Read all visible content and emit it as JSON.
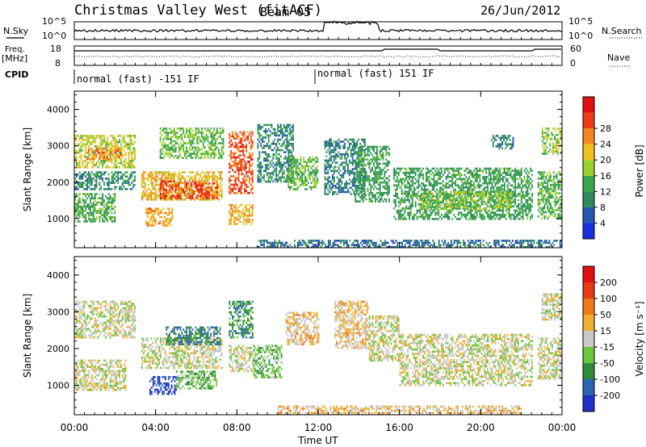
{
  "header": {
    "title": "Christmas Valley West (fitACF)",
    "beam": "Beam 05",
    "date": "26/Jun/2012"
  },
  "labels": {
    "nsky": "N.Sky",
    "nsearch": "N.Search",
    "freq_top": "Freq.",
    "freq_unit": "[MHz]",
    "nave": "Nave",
    "cpid": "CPID"
  },
  "ticks": {
    "nsky_top": "10^5",
    "nsky_bottom": "10^0",
    "nsearch_top": "10^5",
    "nsearch_bottom": "10^0",
    "freq_top": "18",
    "freq_bottom": "8",
    "nave_top": "60",
    "nave_bottom": "0"
  },
  "cpid_modes": [
    {
      "label": "normal (fast) -151 IF",
      "start_hour": 0
    },
    {
      "label": "normal (fast) 151 IF",
      "start_hour": 12
    }
  ],
  "x_axis": {
    "label": "Time UT",
    "range_hours": [
      0,
      24
    ],
    "tick_labels": [
      "00:00",
      "04:00",
      "08:00",
      "12:00",
      "16:00",
      "20:00",
      "00:00"
    ]
  },
  "chart_data": [
    {
      "type": "heatmap",
      "panel": "power",
      "ylabel": "Slant Range [km]",
      "ylim": [
        200,
        4500
      ],
      "yticks": [
        1000,
        2000,
        3000,
        4000
      ],
      "colorbar": {
        "label": "Power [dB]",
        "range": [
          0,
          32
        ],
        "tick_labels": [
          "4",
          "8",
          "12",
          "16",
          "20",
          "24",
          "28"
        ],
        "colors": [
          "#1a2fe0",
          "#2458b0",
          "#2e8a5a",
          "#3aa84a",
          "#9cd02c",
          "#f0c020",
          "#f5881c",
          "#ee3d14",
          "#e01010"
        ]
      },
      "regions": [
        {
          "t": [
            0.0,
            3.0
          ],
          "r": [
            2400,
            3300
          ],
          "v": 17
        },
        {
          "t": [
            0.6,
            2.4
          ],
          "r": [
            2650,
            2950
          ],
          "v": 23
        },
        {
          "t": [
            0.0,
            3.0
          ],
          "r": [
            1800,
            2300
          ],
          "v": 9
        },
        {
          "t": [
            0.0,
            2.0
          ],
          "r": [
            900,
            1700
          ],
          "v": 12
        },
        {
          "t": [
            3.3,
            7.3
          ],
          "r": [
            1500,
            2300
          ],
          "v": 20
        },
        {
          "t": [
            4.2,
            7.0
          ],
          "r": [
            1550,
            2050
          ],
          "v": 27
        },
        {
          "t": [
            3.5,
            4.8
          ],
          "r": [
            800,
            1300
          ],
          "v": 22
        },
        {
          "t": [
            4.2,
            7.3
          ],
          "r": [
            2650,
            3500
          ],
          "v": 14
        },
        {
          "t": [
            7.6,
            8.8
          ],
          "r": [
            1700,
            3400
          ],
          "v": 26
        },
        {
          "t": [
            7.6,
            8.8
          ],
          "r": [
            850,
            1400
          ],
          "v": 21
        },
        {
          "t": [
            9.0,
            10.8
          ],
          "r": [
            2000,
            3600
          ],
          "v": 9
        },
        {
          "t": [
            10.5,
            12.0
          ],
          "r": [
            1800,
            2700
          ],
          "v": 13
        },
        {
          "t": [
            12.3,
            14.3
          ],
          "r": [
            1700,
            3200
          ],
          "v": 8
        },
        {
          "t": [
            13.8,
            15.5
          ],
          "r": [
            1500,
            3000
          ],
          "v": 11
        },
        {
          "t": [
            15.7,
            22.5
          ],
          "r": [
            1000,
            2400
          ],
          "v": 11
        },
        {
          "t": [
            17.0,
            21.5
          ],
          "r": [
            1250,
            1750
          ],
          "v": 15
        },
        {
          "t": [
            20.5,
            21.6
          ],
          "r": [
            2900,
            3300
          ],
          "v": 8
        },
        {
          "t": [
            22.8,
            24.0
          ],
          "r": [
            1000,
            2300
          ],
          "v": 13
        },
        {
          "t": [
            23.0,
            24.0
          ],
          "r": [
            2800,
            3500
          ],
          "v": 15
        },
        {
          "t": [
            9.0,
            24.0
          ],
          "r": [
            200,
            420
          ],
          "v": 7
        }
      ]
    },
    {
      "type": "heatmap",
      "panel": "velocity",
      "ylabel": "Slant Range [km]",
      "ylim": [
        200,
        4500
      ],
      "yticks": [
        1000,
        2000,
        3000,
        4000
      ],
      "colorbar": {
        "label": "Velocity [m s⁻¹]",
        "range": [
          -250,
          250
        ],
        "tick_labels": [
          "200",
          "100",
          "50",
          "15",
          "-15",
          "-50",
          "-100",
          "-200"
        ],
        "colors": [
          "#2030c8",
          "#2a64b4",
          "#2f8a3a",
          "#6ac83a",
          "#c8c8c8",
          "#f0b030",
          "#f07818",
          "#e83a14",
          "#e01010"
        ]
      },
      "regions": [
        {
          "t": [
            0.0,
            3.0
          ],
          "r": [
            2300,
            3300
          ],
          "v": 0
        },
        {
          "t": [
            0.0,
            2.5
          ],
          "r": [
            900,
            1700
          ],
          "v": 0
        },
        {
          "t": [
            3.3,
            7.3
          ],
          "r": [
            1500,
            2300
          ],
          "v": -5
        },
        {
          "t": [
            4.5,
            7.2
          ],
          "r": [
            2100,
            2600
          ],
          "v": -130
        },
        {
          "t": [
            3.7,
            5.0
          ],
          "r": [
            750,
            1250
          ],
          "v": -190
        },
        {
          "t": [
            5.0,
            7.0
          ],
          "r": [
            900,
            1400
          ],
          "v": -60
        },
        {
          "t": [
            7.6,
            8.8
          ],
          "r": [
            2300,
            3300
          ],
          "v": -110
        },
        {
          "t": [
            7.6,
            8.8
          ],
          "r": [
            1400,
            2100
          ],
          "v": 0
        },
        {
          "t": [
            8.8,
            10.2
          ],
          "r": [
            1200,
            2100
          ],
          "v": -60
        },
        {
          "t": [
            10.4,
            12.0
          ],
          "r": [
            2100,
            3000
          ],
          "v": 35
        },
        {
          "t": [
            12.8,
            14.5
          ],
          "r": [
            2000,
            3300
          ],
          "v": 35
        },
        {
          "t": [
            14.5,
            16.0
          ],
          "r": [
            1700,
            2900
          ],
          "v": 0
        },
        {
          "t": [
            16.0,
            22.5
          ],
          "r": [
            1000,
            2400
          ],
          "v": 0
        },
        {
          "t": [
            22.8,
            24.0
          ],
          "r": [
            1200,
            2300
          ],
          "v": 0
        },
        {
          "t": [
            23.0,
            24.0
          ],
          "r": [
            2800,
            3500
          ],
          "v": 0
        },
        {
          "t": [
            10.0,
            22.0
          ],
          "r": [
            200,
            450
          ],
          "v": 35
        }
      ]
    }
  ]
}
